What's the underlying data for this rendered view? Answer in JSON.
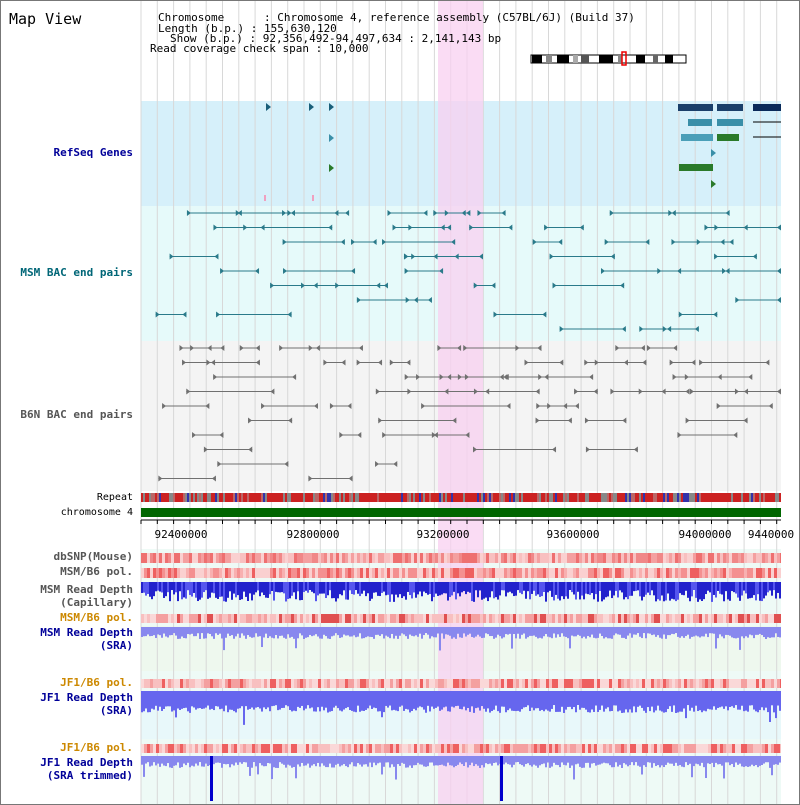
{
  "app_title": "Map View",
  "header": {
    "chromosome_label": "Chromosome      : Chromosome 4, reference assembly (C57BL/6J) (Build 37)",
    "length_label": "Length (b.p.) : 155,630,120",
    "show_label": "Show (b.p.) : 92,356,492-94,497,634 : 2,141,143 bp",
    "coverage_label": "Read coverage check span : 10,000"
  },
  "tracks": {
    "refseq": "RefSeq Genes",
    "msm_bac": "MSM BAC end pairs",
    "b6n_bac": "B6N BAC end pairs",
    "repeat": "Repeat",
    "chromosome": "chromosome 4",
    "dbsnp": "dbSNP(Mouse)",
    "msm_b6_pol_1": "MSM/B6 pol.",
    "msm_read_depth_cap_1": "MSM Read Depth",
    "msm_read_depth_cap_2": "(Capillary)",
    "msm_b6_pol_2": "MSM/B6 pol.",
    "msm_read_depth_sra_1": "MSM Read Depth",
    "msm_read_depth_sra_2": "(SRA)",
    "jf1_b6_pol_1": "JF1/B6 pol.",
    "jf1_read_depth_sra_1": "JF1 Read Depth",
    "jf1_read_depth_sra_2": "(SRA)",
    "jf1_b6_pol_2": "JF1/B6 pol.",
    "jf1_read_depth_trim_1": "JF1 Read Depth",
    "jf1_read_depth_trim_2": "(SRA trimmed)"
  },
  "axis_ticks": [
    "92400000",
    "92800000",
    "93200000",
    "93600000",
    "94000000",
    "9440000"
  ],
  "colors": {
    "refseq_bg": "#d6f0fa",
    "msm_bg": "#e6fafa",
    "b6n_bg": "#f4f4f4",
    "highlight": "#f8d0f0",
    "chromosome_bar": "#006600",
    "label_blue": "#000099",
    "label_teal": "#006677",
    "label_gray": "#555555",
    "label_orange": "#cc8800"
  }
}
